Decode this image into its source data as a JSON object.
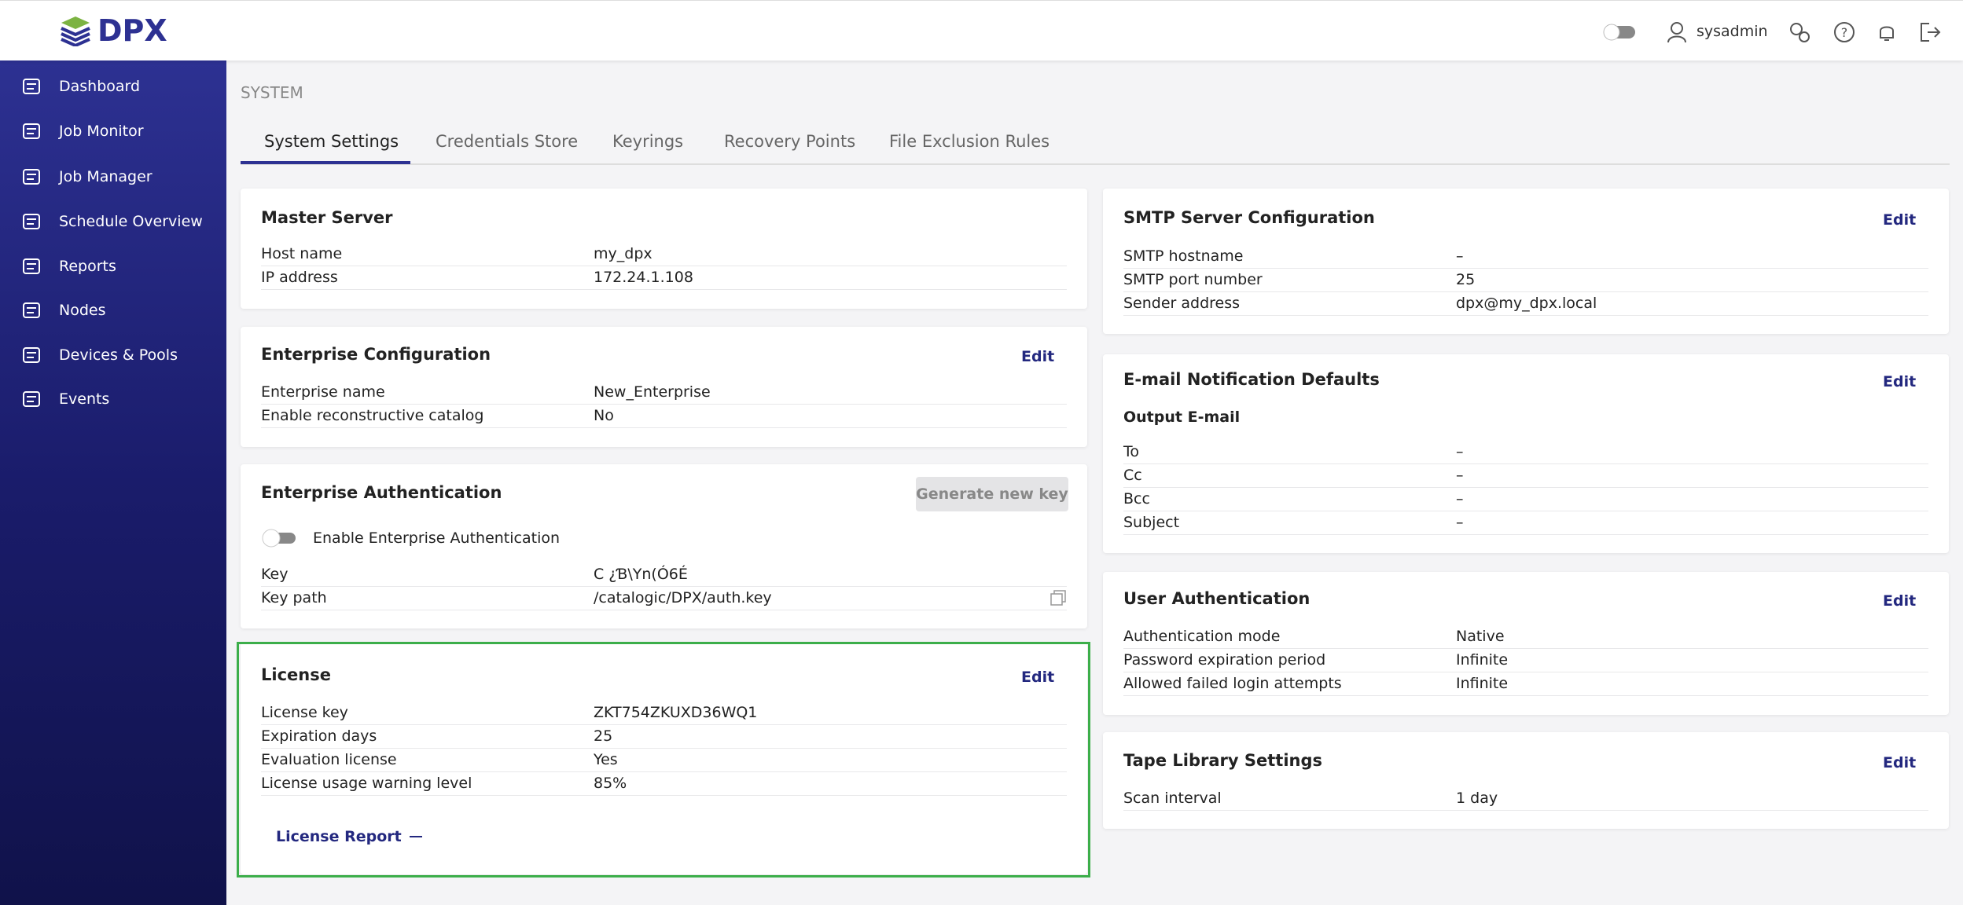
{
  "header": {
    "brand": "DPX",
    "user": "sysadmin"
  },
  "sidebar": {
    "items": [
      "Dashboard",
      "Job Monitor",
      "Job Manager",
      "Schedule Overview",
      "Reports",
      "Nodes",
      "Devices & Pools",
      "Events"
    ]
  },
  "page": {
    "section": "SYSTEM",
    "tabs": [
      "System Settings",
      "Credentials Store",
      "Keyrings",
      "Recovery Points",
      "File Exclusion Rules"
    ]
  },
  "cards": [
    {
      "title": "Master Server",
      "rows": [
        [
          "Host name",
          "my_dpx"
        ],
        [
          "IP address",
          "172.24.1.108"
        ]
      ]
    },
    {
      "title": "Enterprise Configuration",
      "action": "Edit",
      "rows": [
        [
          "Enterprise name",
          "New_Enterprise"
        ],
        [
          "Enable reconstructive catalog",
          "No"
        ]
      ]
    },
    {
      "title": "Enterprise Authentication",
      "button": "Generate new key",
      "toggle": "Enable Enterprise Authentication",
      "rows": [
        [
          "Key",
          "C ¿Ɓ\\Yn(Ó6É"
        ],
        [
          "Key path",
          "/catalogic/DPX/auth.key"
        ]
      ]
    },
    {
      "title": "License",
      "action": "Edit",
      "rows": [
        [
          "License key",
          "ZKT754ZKUXD36WQ1"
        ],
        [
          "Expiration days",
          "25"
        ],
        [
          "Evaluation license",
          "Yes"
        ],
        [
          "License usage warning level",
          "85%"
        ]
      ],
      "link": "License Report"
    },
    {
      "title": "SMTP Server Configuration",
      "action": "Edit",
      "rows": [
        [
          "SMTP hostname",
          "–"
        ],
        [
          "SMTP port number",
          "25"
        ],
        [
          "Sender address",
          "dpx@my_dpx.local"
        ]
      ]
    },
    {
      "title": "E-mail Notification Defaults",
      "action": "Edit",
      "subtitle": "Output E-mail",
      "rows": [
        [
          "To",
          "–"
        ],
        [
          "Cc",
          "–"
        ],
        [
          "Bcc",
          "–"
        ],
        [
          "Subject",
          "–"
        ]
      ]
    },
    {
      "title": "User Authentication",
      "action": "Edit",
      "rows": [
        [
          "Authentication mode",
          "Native"
        ],
        [
          "Password expiration period",
          "Infinite"
        ],
        [
          "Allowed failed login attempts",
          "Infinite"
        ]
      ]
    },
    {
      "title": "Tape Library Settings",
      "action": "Edit",
      "rows": [
        [
          "Scan interval",
          "1 day"
        ]
      ]
    }
  ]
}
